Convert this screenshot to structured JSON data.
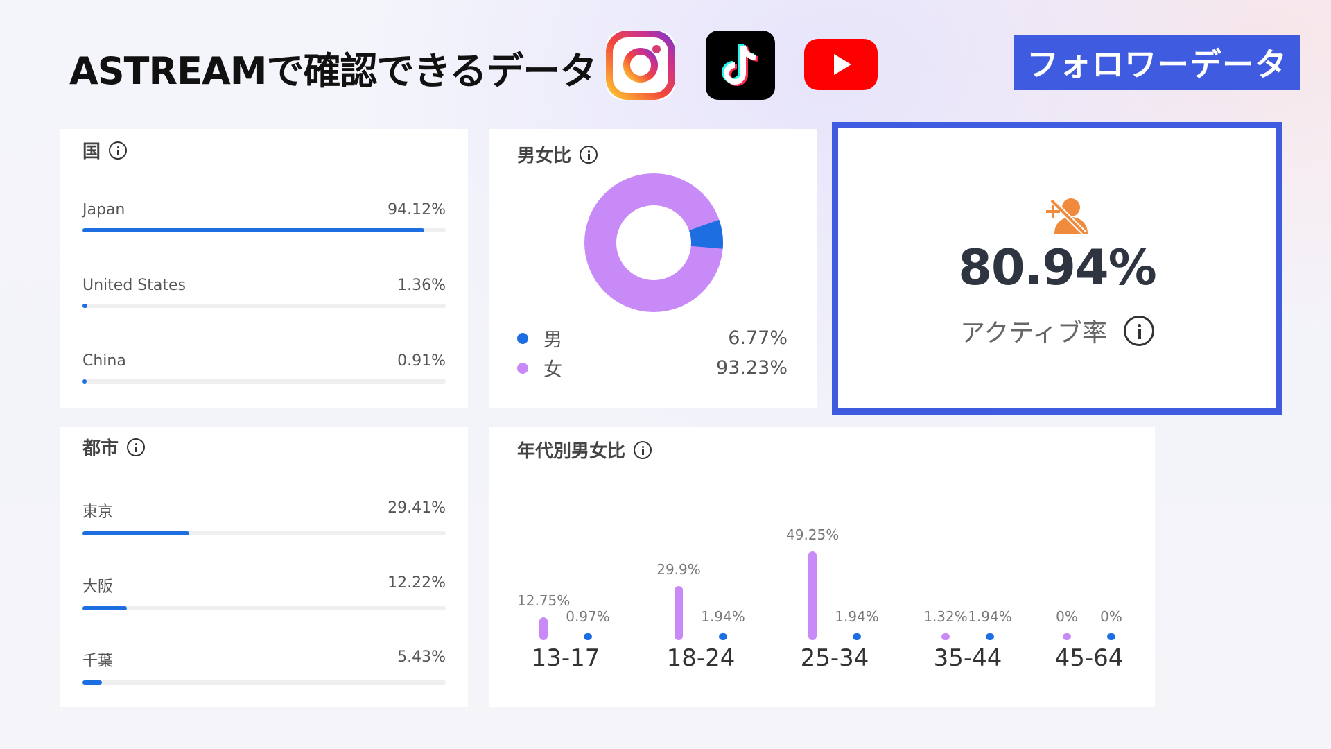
{
  "header": {
    "title": "ASTREAMで確認できるデータ",
    "tag": "フォロワーデータ",
    "platforms": [
      "instagram-icon",
      "tiktok-icon",
      "youtube-icon"
    ]
  },
  "country": {
    "title": "国",
    "items": [
      {
        "label": "Japan",
        "value": "94.12%",
        "pct": 94.12
      },
      {
        "label": "United States",
        "value": "1.36%",
        "pct": 1.36
      },
      {
        "label": "China",
        "value": "0.91%",
        "pct": 0.91
      }
    ]
  },
  "gender": {
    "title": "男女比",
    "male": {
      "label": "男",
      "value": "6.77%",
      "pct": 6.77,
      "color": "#1d6ee0"
    },
    "female": {
      "label": "女",
      "value": "93.23%",
      "pct": 93.23,
      "color": "#c88af7"
    }
  },
  "active": {
    "value": "80.94%",
    "label": "アクティブ率",
    "icon_color": "#f08a3c"
  },
  "city": {
    "title": "都市",
    "items": [
      {
        "label": "東京",
        "value": "29.41%",
        "pct": 29.41
      },
      {
        "label": "大阪",
        "value": "12.22%",
        "pct": 12.22
      },
      {
        "label": "千葉",
        "value": "5.43%",
        "pct": 5.43
      }
    ]
  },
  "age": {
    "title": "年代別男女比",
    "groups": [
      {
        "label": "13-17",
        "female": "12.75%",
        "male": "0.97%",
        "female_pct": 12.75,
        "male_pct": 0.97
      },
      {
        "label": "18-24",
        "female": "29.9%",
        "male": "1.94%",
        "female_pct": 29.9,
        "male_pct": 1.94
      },
      {
        "label": "25-34",
        "female": "49.25%",
        "male": "1.94%",
        "female_pct": 49.25,
        "male_pct": 1.94
      },
      {
        "label": "35-44",
        "female": "1.32%",
        "male": "1.94%",
        "female_pct": 1.32,
        "male_pct": 1.94
      },
      {
        "label": "45-64",
        "female": "0%",
        "male": "0%",
        "female_pct": 0,
        "male_pct": 0
      }
    ]
  },
  "colors": {
    "accent": "#3f5ce0",
    "bar": "#1d6ee0",
    "female": "#c88af7"
  }
}
